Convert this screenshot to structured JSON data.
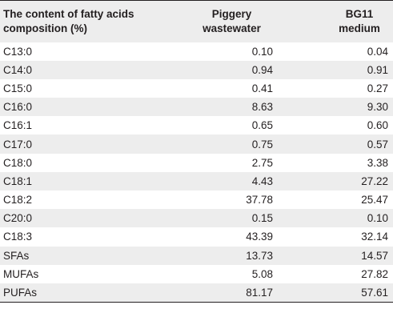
{
  "table": {
    "headers": {
      "col1_line1": "The content of fatty acids",
      "col1_line2": "composition (%)",
      "col2_line1": "Piggery",
      "col2_line2": "wastewater",
      "col3_line1": "BG11",
      "col3_line2": "medium"
    },
    "rows": [
      {
        "name": "C13:0",
        "piggery": "0.10",
        "bg11": "0.04"
      },
      {
        "name": "C14:0",
        "piggery": "0.94",
        "bg11": "0.91"
      },
      {
        "name": "C15:0",
        "piggery": "0.41",
        "bg11": "0.27"
      },
      {
        "name": "C16:0",
        "piggery": "8.63",
        "bg11": "9.30"
      },
      {
        "name": "C16:1",
        "piggery": "0.65",
        "bg11": "0.60"
      },
      {
        "name": "C17:0",
        "piggery": "0.75",
        "bg11": "0.57"
      },
      {
        "name": "C18:0",
        "piggery": "2.75",
        "bg11": "3.38"
      },
      {
        "name": "C18:1",
        "piggery": "4.43",
        "bg11": "27.22"
      },
      {
        "name": "C18:2",
        "piggery": "37.78",
        "bg11": "25.47"
      },
      {
        "name": "C20:0",
        "piggery": "0.15",
        "bg11": "0.10"
      },
      {
        "name": "C18:3",
        "piggery": "43.39",
        "bg11": "32.14"
      },
      {
        "name": "SFAs",
        "piggery": "13.73",
        "bg11": "14.57"
      },
      {
        "name": "MUFAs",
        "piggery": "5.08",
        "bg11": "27.82"
      },
      {
        "name": "PUFAs",
        "piggery": "81.17",
        "bg11": "57.61"
      }
    ]
  },
  "colors": {
    "stripe": "#ededed",
    "text": "#231f20",
    "rule": "#231f20"
  }
}
